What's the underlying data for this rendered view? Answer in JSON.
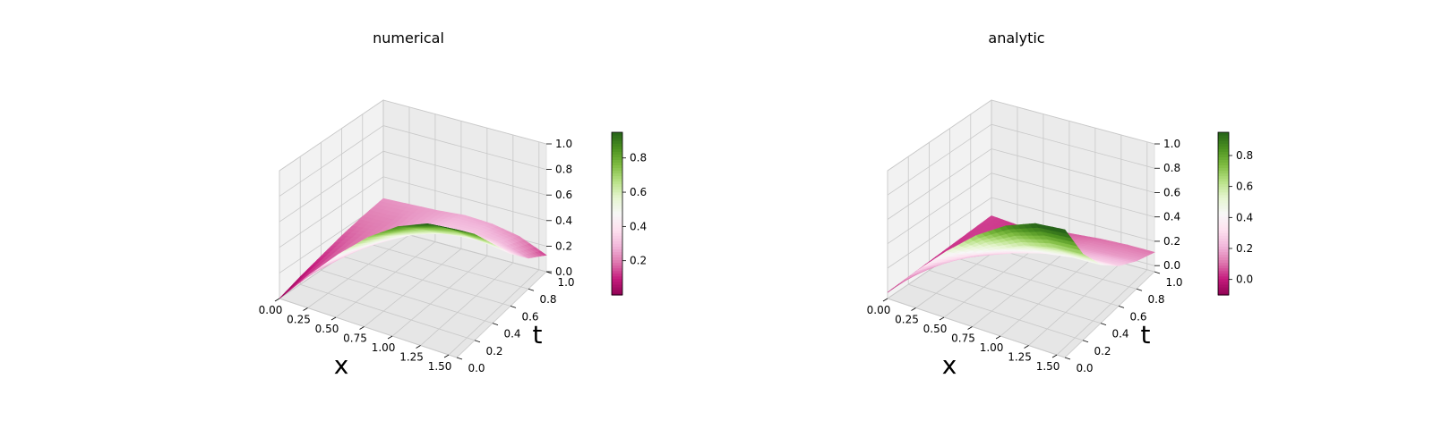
{
  "colormap": {
    "name": "PiYG",
    "stops": [
      "#8e0152",
      "#c51b7d",
      "#de77ae",
      "#f1b6da",
      "#fde0ef",
      "#f7f7f7",
      "#e6f5d0",
      "#b8e186",
      "#7fbc41",
      "#4d9221",
      "#276419"
    ]
  },
  "chart_data": [
    {
      "type": "surface3d",
      "title": "numerical",
      "xlabel": "x",
      "ylabel": "t",
      "zlabel": "",
      "xlim": [
        0,
        1.5708
      ],
      "ylim": [
        0,
        1
      ],
      "zlim": [
        0,
        1
      ],
      "xticks": [
        "0.00",
        "0.25",
        "0.50",
        "0.75",
        "1.00",
        "1.25",
        "1.50"
      ],
      "yticks": [
        "0.0",
        "0.2",
        "0.4",
        "0.6",
        "0.8",
        "1.0"
      ],
      "zticks": [
        "0.0",
        "0.2",
        "0.4",
        "0.6",
        "0.8",
        "1.0"
      ],
      "colorbar": {
        "range": [
          0.0,
          0.95
        ],
        "ticks": [
          "0.2",
          "0.4",
          "0.6",
          "0.8"
        ],
        "tick_values": [
          0.2,
          0.4,
          0.6,
          0.8
        ]
      },
      "surface": {
        "x": [
          0,
          0.2618,
          0.5236,
          0.7854,
          1.0472,
          1.309,
          1.5708
        ],
        "t": [
          0,
          0.2,
          0.4,
          0.6,
          0.8,
          1.0
        ],
        "u": [
          [
            0.0,
            0.06,
            0.11,
            0.16,
            0.2,
            0.23
          ],
          [
            0.26,
            0.23,
            0.21,
            0.2,
            0.21,
            0.24
          ],
          [
            0.5,
            0.42,
            0.35,
            0.29,
            0.26,
            0.25
          ],
          [
            0.71,
            0.6,
            0.48,
            0.38,
            0.31,
            0.27
          ],
          [
            0.87,
            0.73,
            0.57,
            0.43,
            0.32,
            0.26
          ],
          [
            0.97,
            0.81,
            0.62,
            0.44,
            0.3,
            0.22
          ],
          [
            1.0,
            0.83,
            0.62,
            0.41,
            0.24,
            0.13
          ]
        ]
      }
    },
    {
      "type": "surface3d",
      "title": "analytic",
      "xlabel": "x",
      "ylabel": "t",
      "zlabel": "",
      "xlim": [
        0,
        1.5708
      ],
      "ylim": [
        0,
        1
      ],
      "zlim": [
        -0.05,
        1
      ],
      "xticks": [
        "0.00",
        "0.25",
        "0.50",
        "0.75",
        "1.00",
        "1.25",
        "1.50"
      ],
      "yticks": [
        "0.0",
        "0.2",
        "0.4",
        "0.6",
        "0.8",
        "1.0"
      ],
      "zticks": [
        "0.0",
        "0.2",
        "0.4",
        "0.6",
        "0.8",
        "1.0"
      ],
      "colorbar": {
        "range": [
          -0.1,
          0.95
        ],
        "ticks": [
          "0.0",
          "0.2",
          "0.4",
          "0.6",
          "0.8"
        ],
        "tick_values": [
          0.0,
          0.2,
          0.4,
          0.6,
          0.8
        ]
      },
      "surface": {
        "x": [
          0,
          0.2618,
          0.5236,
          0.7854,
          1.0472,
          1.309,
          1.5708
        ],
        "t": [
          0,
          0.2,
          0.4,
          0.6,
          0.8,
          1.0
        ],
        "u": [
          [
            0.0,
            0.01,
            0.02,
            0.03,
            0.04,
            0.05
          ],
          [
            0.26,
            0.18,
            0.12,
            0.08,
            0.05,
            0.03
          ],
          [
            0.5,
            0.34,
            0.22,
            0.14,
            0.09,
            0.06
          ],
          [
            0.71,
            0.47,
            0.31,
            0.2,
            0.13,
            0.08
          ],
          [
            0.87,
            0.58,
            0.38,
            0.24,
            0.16,
            0.1
          ],
          [
            0.97,
            0.64,
            0.42,
            0.27,
            0.17,
            0.11
          ],
          [
            1.0,
            0.66,
            0.43,
            0.28,
            0.18,
            0.11
          ]
        ]
      }
    }
  ]
}
